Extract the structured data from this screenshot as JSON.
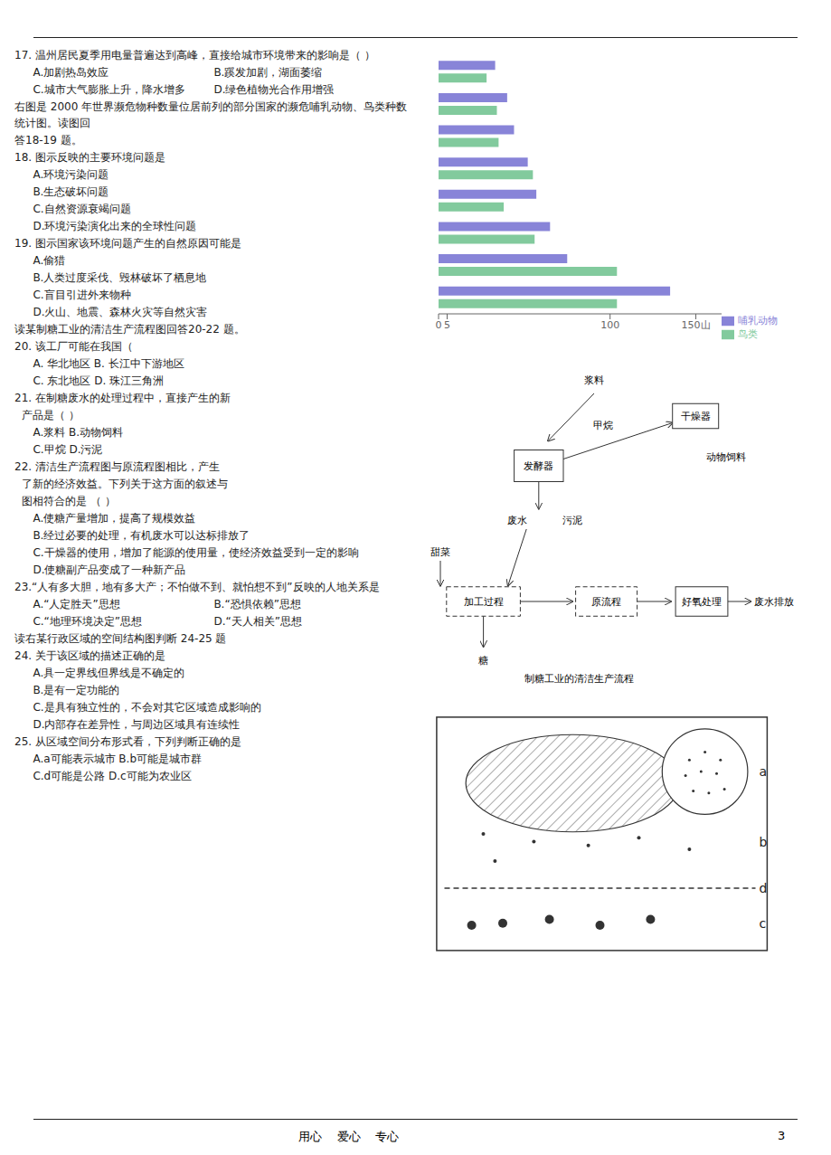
{
  "chart_data": {
    "type": "bar",
    "orientation": "horizontal",
    "categories": [
      null,
      null,
      null,
      null,
      null,
      null,
      null,
      null
    ],
    "series": [
      {
        "name": "哺乳动物",
        "color": "#8884d8",
        "values": [
          135,
          75,
          65,
          57,
          52,
          44,
          40,
          33
        ]
      },
      {
        "name": "鸟类",
        "color": "#82ca9d",
        "values": [
          104,
          104,
          56,
          38,
          55,
          35,
          34,
          28
        ]
      }
    ],
    "xlim": [
      0,
      165
    ],
    "xticks": [
      0,
      5,
      100,
      {
        "value": 150,
        "label": "150山"
      }
    ],
    "legend": "lower right",
    "tick_labels": "x",
    "annotations": [
      "17. 温州居民夏季用电量普遍达到高峰，直接给城市环境带来的影响是（    ）",
      "A.加剧热岛效应",
      "B.蹊发加剧，湖面萎缩",
      "C.城市大气膨胀上升，降水增多",
      "D.绿色植物光合作用增强",
      "右图是 2000 年世界濒危物种数量位居前列的部分国家的濒危哺乳动物、鸟类种数统计图。读图回",
      "答18-19 题。",
      "18. 图示反映的主要环境问题是",
      "A.环境污染问题",
      "B.生态破坏问题",
      "C.自然资源衰竭问题",
      "D.环境污染演化出来的全球性问题",
      "19. 图示国家该环境问题产生的自然原因可能是",
      "A.偷猎",
      "B.人类过度采伐、毁林破坏了栖息地",
      "C.盲目引进外来物种",
      "D.火山、地震、森林火灾等自然灾害",
      "读某制糖工业的清洁生产流程图回答20-22 题。",
      "20. 该工厂可能在我国（",
      "A. 华北地区      B. 长江中下游地区",
      "C. 东北地区      D. 珠江三角洲",
      "21. 在制糖废水的处理过程中，直接产生的新",
      "产品是（    ）",
      "A.浆料         B.动物饲料",
      "C.甲烷         D.污泥",
      "22. 清洁生产流程图与原流程图相比，产生",
      "了新的经济效益。下列关于这方面的叙述与",
      "图相符合的是    （    ）",
      "A.使糖产量增加，提高了规模效益",
      "B.经过必要的处理，有机废水可以达标排放了",
      "C.干燥器的使用，增加了能源的使用量，使经济效益受到一定的影响",
      "D.使糖副产品变成了一种新产品",
      "23.“人有多大胆，地有多大产；不怕做不到、就怕想不到”反映的人地关系是",
      "A.“人定胜天”思想",
      "B.“恐惧依赖”思想",
      "C.“地理环境决定”思想",
      "D.“天人相关”思想",
      "读右某行政区域的空间结构图判断 24-25 题",
      "24. 关于该区域的描述正确的是",
      "A.具一定界线但界线是不确定的",
      "B.是有一定功能的",
      "C.是具有独立性的，不会对其它区域造成影响的",
      "D.内部存在差异性，与周边区域具有连续性",
      "25. 从区域空间分布形式看，下列判断正确的是",
      "A.a可能表示城市      B.b可能是城市群",
      "C.d可能是公路       D.c可能为农业区",
      "用心    爱心    专心",
      "3",
      "浆料",
      "甲烷",
      "干燥器",
      "动物饲料",
      "发酵器",
      "废水",
      "污泥",
      "甜菜",
      "加工过程",
      "原流程",
      "好氧处理",
      "废水排放",
      "糖",
      "制糖工业的清洁生产流程",
      "a",
      "b",
      "d",
      "c"
    ]
  }
}
